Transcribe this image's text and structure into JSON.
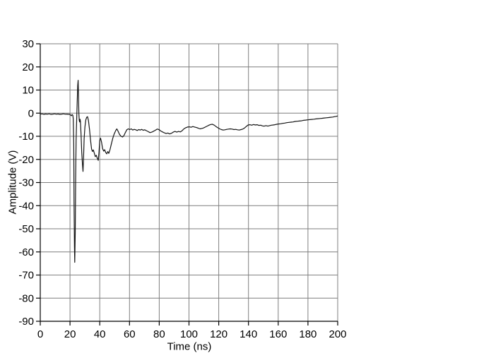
{
  "chart_data": {
    "type": "line",
    "title": "",
    "xlabel": "Time (ns)",
    "ylabel": "Amplitude (V)",
    "xlim": [
      0,
      200
    ],
    "ylim": [
      -90,
      30
    ],
    "x_ticks": [
      0,
      20,
      40,
      60,
      80,
      100,
      120,
      140,
      160,
      180,
      200
    ],
    "y_ticks": [
      30,
      20,
      10,
      0,
      -10,
      -20,
      -30,
      -40,
      -50,
      -60,
      -70,
      -80,
      -90
    ],
    "grid": true,
    "legend": false,
    "colors": {
      "line": "#141414",
      "grid": "#7f7f7f",
      "axis": "#000000",
      "background": "#ffffff"
    },
    "series": [
      {
        "name": "amplitude",
        "points": [
          [
            0,
            -0.4
          ],
          [
            1.2,
            -0.3
          ],
          [
            2.4,
            -0.5
          ],
          [
            3.6,
            -0.35
          ],
          [
            4.8,
            -0.45
          ],
          [
            6,
            -0.3
          ],
          [
            7.2,
            -0.5
          ],
          [
            8.4,
            -0.4
          ],
          [
            9.6,
            -0.3
          ],
          [
            10.8,
            -0.45
          ],
          [
            12,
            -0.35
          ],
          [
            13.2,
            -0.5
          ],
          [
            14.4,
            -0.4
          ],
          [
            15.6,
            -0.3
          ],
          [
            16.8,
            -0.45
          ],
          [
            18,
            -0.4
          ],
          [
            19,
            -0.5
          ],
          [
            19.8,
            -0.45
          ],
          [
            20.5,
            -0.9
          ],
          [
            21,
            -1.1
          ],
          [
            21.4,
            -0.6
          ],
          [
            21.9,
            -0.9
          ],
          [
            22.2,
            -2.5
          ],
          [
            22.5,
            -14
          ],
          [
            22.7,
            -38
          ],
          [
            23,
            -58
          ],
          [
            23.2,
            -64.5
          ],
          [
            23.5,
            -52
          ],
          [
            23.8,
            -28
          ],
          [
            24.1,
            -12
          ],
          [
            24.5,
            -2
          ],
          [
            24.9,
            6
          ],
          [
            25.2,
            12
          ],
          [
            25.45,
            14.2
          ],
          [
            25.7,
            8
          ],
          [
            25.95,
            0
          ],
          [
            26.2,
            -3.2
          ],
          [
            26.5,
            -3.8
          ],
          [
            26.75,
            -2.6
          ],
          [
            27,
            -3.4
          ],
          [
            27.4,
            -9
          ],
          [
            27.9,
            -17
          ],
          [
            28.4,
            -22.5
          ],
          [
            28.75,
            -25.2
          ],
          [
            29.1,
            -19
          ],
          [
            29.5,
            -11
          ],
          [
            30,
            -6
          ],
          [
            30.6,
            -3
          ],
          [
            31.2,
            -1.8
          ],
          [
            31.8,
            -1.5
          ],
          [
            32.4,
            -3.2
          ],
          [
            33.1,
            -7
          ],
          [
            33.8,
            -11.5
          ],
          [
            34.5,
            -15.5
          ],
          [
            35.1,
            -16.6
          ],
          [
            35.7,
            -15.9
          ],
          [
            36.3,
            -17.2
          ],
          [
            37,
            -18.8
          ],
          [
            37.7,
            -18.2
          ],
          [
            38.4,
            -19.6
          ],
          [
            39,
            -20.4
          ],
          [
            39.5,
            -17
          ],
          [
            40,
            -11.8
          ],
          [
            40.5,
            -10.8
          ],
          [
            41.2,
            -12.5
          ],
          [
            41.9,
            -15.3
          ],
          [
            42.6,
            -16.4
          ],
          [
            43.3,
            -15.8
          ],
          [
            44,
            -17
          ],
          [
            44.7,
            -17.6
          ],
          [
            45.4,
            -16.6
          ],
          [
            46.1,
            -17.4
          ],
          [
            46.9,
            -15.8
          ],
          [
            47.7,
            -13.6
          ],
          [
            48.7,
            -11
          ],
          [
            49.7,
            -9
          ],
          [
            50.7,
            -7.6
          ],
          [
            51.5,
            -6.8
          ],
          [
            52.3,
            -7.8
          ],
          [
            53.3,
            -9.2
          ],
          [
            54.3,
            -10
          ],
          [
            55.3,
            -10.3
          ],
          [
            56.2,
            -9.8
          ],
          [
            57.2,
            -8.4
          ],
          [
            58.2,
            -7.2
          ],
          [
            59.2,
            -6.8
          ],
          [
            60.2,
            -7.1
          ],
          [
            61.2,
            -6.8
          ],
          [
            62.2,
            -7.3
          ],
          [
            63.2,
            -7
          ],
          [
            64.2,
            -7.2
          ],
          [
            65.2,
            -7.5
          ],
          [
            66.2,
            -7.1
          ],
          [
            67.2,
            -7.3
          ],
          [
            68.2,
            -7
          ],
          [
            69.2,
            -7.4
          ],
          [
            70.2,
            -7.2
          ],
          [
            71.4,
            -7.6
          ],
          [
            72.6,
            -8
          ],
          [
            73.8,
            -8.4
          ],
          [
            75,
            -8.2
          ],
          [
            76.2,
            -7.8
          ],
          [
            77.4,
            -7.4
          ],
          [
            78.6,
            -6.9
          ],
          [
            79.8,
            -7.1
          ],
          [
            81,
            -7.7
          ],
          [
            82.2,
            -8.1
          ],
          [
            83.4,
            -8.5
          ],
          [
            84.6,
            -8.8
          ],
          [
            85.8,
            -8.6
          ],
          [
            87,
            -9
          ],
          [
            88.2,
            -8.7
          ],
          [
            89.4,
            -8.2
          ],
          [
            90.6,
            -7.9
          ],
          [
            91.8,
            -8.2
          ],
          [
            93,
            -7.9
          ],
          [
            94.2,
            -8.1
          ],
          [
            95.4,
            -7.6
          ],
          [
            96.6,
            -6.8
          ],
          [
            97.8,
            -6.3
          ],
          [
            99,
            -6
          ],
          [
            100.2,
            -5.9
          ],
          [
            101.4,
            -6.1
          ],
          [
            102.6,
            -5.8
          ],
          [
            103.8,
            -6
          ],
          [
            105,
            -6.2
          ],
          [
            106.2,
            -6.5
          ],
          [
            107.4,
            -6.8
          ],
          [
            108.6,
            -6.6
          ],
          [
            109.8,
            -6.4
          ],
          [
            111,
            -6
          ],
          [
            112.2,
            -5.6
          ],
          [
            113.4,
            -5.2
          ],
          [
            114.6,
            -4.9
          ],
          [
            115.8,
            -4.8
          ],
          [
            117,
            -5.2
          ],
          [
            118.2,
            -5.8
          ],
          [
            119.4,
            -6.3
          ],
          [
            120.6,
            -6.8
          ],
          [
            121.8,
            -7.1
          ],
          [
            123,
            -7.3
          ],
          [
            124.2,
            -7.2
          ],
          [
            125.4,
            -7
          ],
          [
            126.6,
            -6.9
          ],
          [
            127.8,
            -6.8
          ],
          [
            129,
            -6.9
          ],
          [
            130.2,
            -7.1
          ],
          [
            131.4,
            -7
          ],
          [
            132.6,
            -7.2
          ],
          [
            133.8,
            -7.3
          ],
          [
            135,
            -7.1
          ],
          [
            136.2,
            -6.9
          ],
          [
            137.4,
            -6.4
          ],
          [
            138.6,
            -5.7
          ],
          [
            139.8,
            -5.1
          ],
          [
            141,
            -5
          ],
          [
            142.2,
            -5.2
          ],
          [
            143.4,
            -4.9
          ],
          [
            144.6,
            -5.1
          ],
          [
            145.8,
            -5
          ],
          [
            147,
            -5.3
          ],
          [
            148.2,
            -5.2
          ],
          [
            149.4,
            -5.5
          ],
          [
            150.6,
            -5.6
          ],
          [
            151.8,
            -5.4
          ],
          [
            153,
            -5.6
          ],
          [
            154.2,
            -5.4
          ],
          [
            155.4,
            -5.2
          ],
          [
            156.6,
            -5.1
          ],
          [
            157.8,
            -5
          ],
          [
            159,
            -4.8
          ],
          [
            160.2,
            -4.7
          ],
          [
            161.6,
            -4.6
          ],
          [
            163,
            -4.4
          ],
          [
            164.4,
            -4.3
          ],
          [
            165.8,
            -4.1
          ],
          [
            167.2,
            -4
          ],
          [
            168.6,
            -3.9
          ],
          [
            170,
            -3.8
          ],
          [
            171.4,
            -3.6
          ],
          [
            172.8,
            -3.5
          ],
          [
            174.2,
            -3.4
          ],
          [
            175.6,
            -3.3
          ],
          [
            177,
            -3.1
          ],
          [
            178.4,
            -3
          ],
          [
            179.8,
            -2.9
          ],
          [
            181.2,
            -2.8
          ],
          [
            182.6,
            -2.7
          ],
          [
            184,
            -2.6
          ],
          [
            185.4,
            -2.5
          ],
          [
            186.8,
            -2.4
          ],
          [
            188.2,
            -2.3
          ],
          [
            189.6,
            -2.2
          ],
          [
            191,
            -2.1
          ],
          [
            192.4,
            -2
          ],
          [
            193.8,
            -1.9
          ],
          [
            195.2,
            -1.8
          ],
          [
            196.6,
            -1.7
          ],
          [
            198,
            -1.5
          ],
          [
            199,
            -1.4
          ],
          [
            200,
            -1.2
          ]
        ]
      }
    ]
  }
}
